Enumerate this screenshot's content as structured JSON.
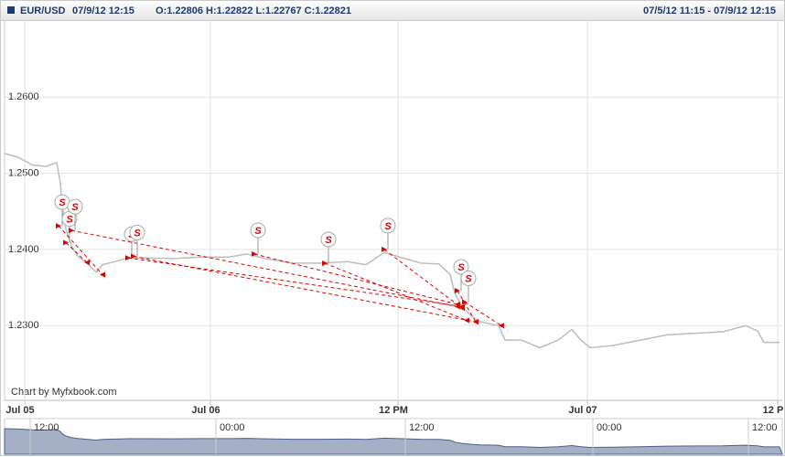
{
  "chart_data": {
    "type": "line",
    "header": {
      "symbol": "EUR/USD",
      "datetime": "07/9/12 12:15",
      "ohlc": "O:1.22806 H:1.22822 L:1.22767 C:1.22821",
      "range": "07/5/12 11:15 - 07/9/12 12:15"
    },
    "credit": "Chart by Myfxbook.com",
    "color": "#bdbdbd",
    "grid": true,
    "x": [
      0,
      15,
      30,
      45,
      57,
      61,
      63,
      67,
      73,
      80,
      90,
      100,
      107,
      120,
      135,
      155,
      185,
      215,
      245,
      265,
      285,
      315,
      345,
      375,
      395,
      415,
      435,
      455,
      475,
      487,
      492,
      500,
      510,
      520,
      540,
      547,
      565,
      585,
      605,
      620,
      630,
      640,
      665,
      695,
      725,
      755,
      785,
      810,
      823,
      830,
      847
    ],
    "values": [
      1.2526,
      1.2521,
      1.2511,
      1.2509,
      1.2514,
      1.2487,
      1.2457,
      1.2427,
      1.2405,
      1.2391,
      1.2382,
      1.237,
      1.238,
      1.2384,
      1.2389,
      1.2389,
      1.2388,
      1.239,
      1.239,
      1.2394,
      1.2388,
      1.2382,
      1.2382,
      1.2384,
      1.238,
      1.2396,
      1.2389,
      1.2382,
      1.2381,
      1.2367,
      1.2343,
      1.2325,
      1.2313,
      1.2305,
      1.23,
      1.2281,
      1.2281,
      1.2271,
      1.2281,
      1.2295,
      1.2281,
      1.2271,
      1.2274,
      1.2281,
      1.2288,
      1.229,
      1.2292,
      1.23,
      1.2293,
      1.2278,
      1.2278
    ],
    "xlim": [
      0,
      850
    ],
    "ylim": [
      1.2202,
      1.2701
    ],
    "yticks": [
      {
        "value": 1.26,
        "label": "1.2600"
      },
      {
        "value": 1.25,
        "label": "1.2500"
      },
      {
        "value": 1.24,
        "label": "1.2400"
      },
      {
        "value": 1.23,
        "label": "1.2300"
      }
    ],
    "xticks": [
      {
        "value": 17,
        "label": "Jul 05"
      },
      {
        "value": 220,
        "label": "Jul 06"
      },
      {
        "value": 425,
        "label": "12 PM"
      },
      {
        "value": 632,
        "label": "Jul 07"
      },
      {
        "value": 840,
        "label": "12 P"
      }
    ],
    "trade_color": "#e00000",
    "trades": [
      {
        "label": "S",
        "open_x": 59,
        "open_price": 1.2431,
        "close_x": 107,
        "close_price": 1.2367
      },
      {
        "label": "S",
        "open_x": 67,
        "open_price": 1.2409,
        "close_x": 90,
        "close_price": 1.2383
      },
      {
        "label": "S",
        "open_x": 73,
        "open_price": 1.2425,
        "close_x": 495,
        "close_price": 1.2325
      },
      {
        "label": "S",
        "open_x": 135,
        "open_price": 1.2389,
        "close_x": 500,
        "close_price": 1.2325
      },
      {
        "label": "S",
        "open_x": 141,
        "open_price": 1.2391,
        "close_x": 515,
        "close_price": 1.2305
      },
      {
        "label": "S",
        "open_x": 273,
        "open_price": 1.2394,
        "close_x": 495,
        "close_price": 1.2328
      },
      {
        "label": "S",
        "open_x": 350,
        "open_price": 1.2382,
        "close_x": 505,
        "close_price": 1.2307
      },
      {
        "label": "S",
        "open_x": 415,
        "open_price": 1.24,
        "close_x": 500,
        "close_price": 1.2323
      },
      {
        "label": "S",
        "open_x": 495,
        "open_price": 1.2346,
        "close_x": 515,
        "close_price": 1.2305
      },
      {
        "label": "S",
        "open_x": 503,
        "open_price": 1.2331,
        "close_x": 543,
        "close_price": 1.23
      }
    ],
    "navigator": {
      "color": "#8796b4",
      "xticks": [
        {
          "value": 40,
          "label": "12:00"
        },
        {
          "value": 243,
          "label": "00:00"
        },
        {
          "value": 450,
          "label": "12:00"
        },
        {
          "value": 655,
          "label": "00:00"
        },
        {
          "value": 825,
          "label": "12:00"
        }
      ]
    }
  }
}
